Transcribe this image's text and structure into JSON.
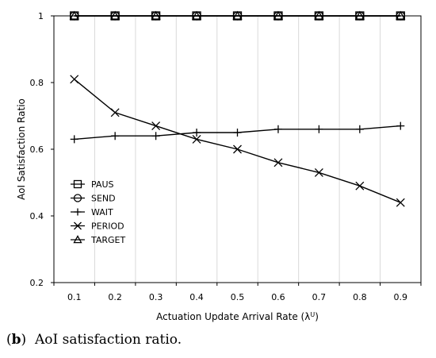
{
  "chart_data": {
    "type": "line",
    "x": [
      0.1,
      0.2,
      0.3,
      0.4,
      0.5,
      0.6,
      0.7,
      0.8,
      0.9
    ],
    "xlabel": "Actuation Update Arrival Rate (λ",
    "xlabel_sup": "U",
    "xlabel_close": ")",
    "ylabel": "AoI Satisfaction Ratio",
    "ylim": [
      0.2,
      1
    ],
    "yticks": [
      0.2,
      0.4,
      0.6,
      0.8,
      1
    ],
    "ytick_labels": [
      "0.2",
      "0.4",
      "0.6",
      "0.8",
      "1"
    ],
    "xtick_labels": [
      "0.1",
      "0.2",
      "0.3",
      "0.4",
      "0.5",
      "0.6",
      "0.7",
      "0.8",
      "0.9"
    ],
    "grid": "vertical",
    "legend_position": "left-lower",
    "series": [
      {
        "name": "PAUS",
        "marker": "square",
        "values": [
          1,
          1,
          1,
          1,
          1,
          1,
          1,
          1,
          1
        ]
      },
      {
        "name": "SEND",
        "marker": "circle",
        "values": [
          1,
          1,
          1,
          1,
          1,
          1,
          1,
          1,
          1
        ]
      },
      {
        "name": "WAIT",
        "marker": "plus",
        "values": [
          0.63,
          0.64,
          0.64,
          0.65,
          0.65,
          0.66,
          0.66,
          0.66,
          0.67
        ]
      },
      {
        "name": "PERIOD",
        "marker": "x",
        "values": [
          0.81,
          0.71,
          0.67,
          0.63,
          0.6,
          0.56,
          0.53,
          0.49,
          0.44
        ]
      },
      {
        "name": "TARGET",
        "marker": "triangle",
        "values": [
          1,
          1,
          1,
          1,
          1,
          1,
          1,
          1,
          1
        ]
      }
    ]
  },
  "caption": {
    "label": "b",
    "text": "AoI satisfaction ratio."
  },
  "colors": {
    "line": "#000000",
    "grid": "#d9d9d9",
    "axis": "#000000"
  }
}
